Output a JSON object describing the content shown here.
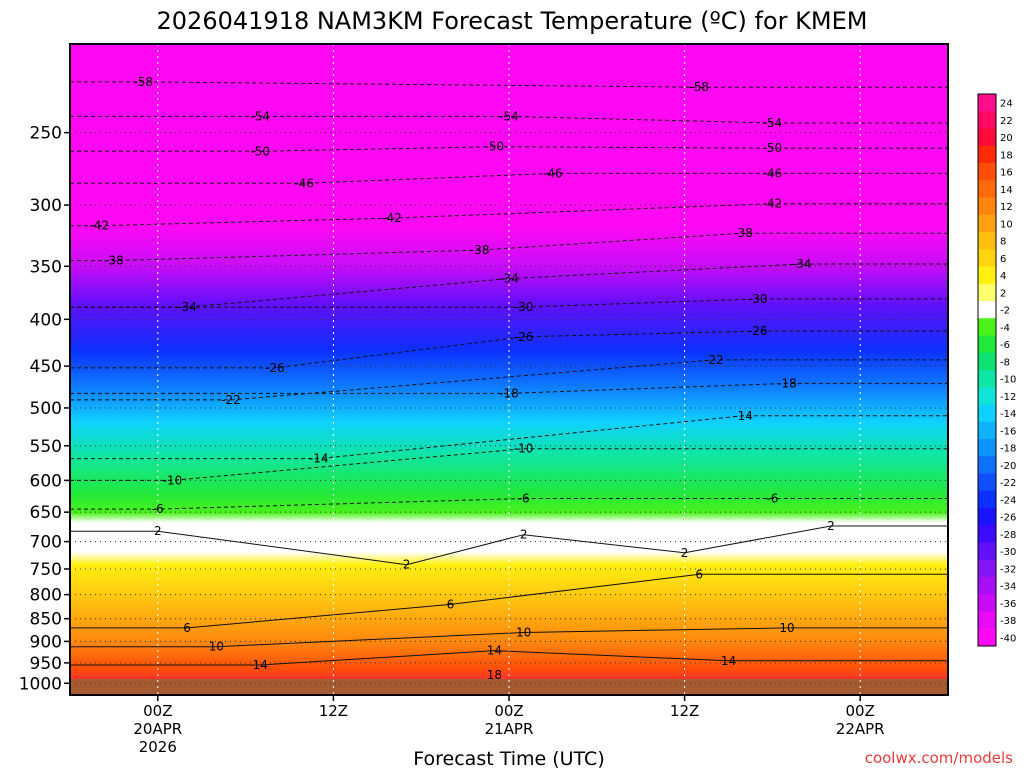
{
  "chart_data": {
    "type": "heatmap",
    "title": "2026041918 NAM3KM Forecast Temperature (ºC) for KMEM",
    "xlabel": "Forecast Time (UTC)",
    "ylabel": "",
    "y_scale": "log-pressure",
    "y_inverted": true,
    "ylim": [
      1030,
      200
    ],
    "y_ticks": [
      250,
      300,
      350,
      400,
      450,
      500,
      550,
      600,
      650,
      700,
      750,
      800,
      850,
      900,
      950,
      1000
    ],
    "x_ticks": [
      {
        "hour": 6,
        "lines": [
          "00Z",
          "20APR",
          "2026"
        ]
      },
      {
        "hour": 18,
        "lines": [
          "12Z"
        ]
      },
      {
        "hour": 30,
        "lines": [
          "00Z",
          "21APR"
        ]
      },
      {
        "hour": 42,
        "lines": [
          "12Z"
        ]
      },
      {
        "hour": 54,
        "lines": [
          "00Z",
          "22APR"
        ]
      }
    ],
    "xlim": [
      0,
      60
    ],
    "colorbar": {
      "labels": [
        "24",
        "22",
        "20",
        "18",
        "16",
        "14",
        "12",
        "10",
        "8",
        "6",
        "4",
        "2",
        "-2",
        "-4",
        "-6",
        "-8",
        "-10",
        "-12",
        "-14",
        "-16",
        "-18",
        "-20",
        "-22",
        "-24",
        "-26",
        "-28",
        "-30",
        "-32",
        "-34",
        "-36",
        "-38",
        "-40"
      ],
      "colors": [
        "#ff0d8c",
        "#ff0a66",
        "#ff0b3b",
        "#ff2a0a",
        "#ff4e0a",
        "#ff6a0d",
        "#ff850e",
        "#ffa10e",
        "#ffbd10",
        "#ffd50f",
        "#fff00f",
        "#fdff6a",
        "#ffffff",
        "#4af21a",
        "#21e83c",
        "#10e070",
        "#0fe6a6",
        "#0fe5d6",
        "#0fd0ff",
        "#0fb2ff",
        "#0f93ff",
        "#0f72ff",
        "#0f4fff",
        "#0c30ff",
        "#1a14ff",
        "#3d0bff",
        "#620ffa",
        "#8415f5",
        "#a80ef7",
        "#c90cf8",
        "#e90bf7",
        "#ff09f5"
      ]
    },
    "contour_labels": [
      {
        "t": 5,
        "p": 220,
        "v": "-58"
      },
      {
        "t": 43,
        "p": 223,
        "v": "-58"
      },
      {
        "t": 13,
        "p": 240,
        "v": "-54"
      },
      {
        "t": 30,
        "p": 240,
        "v": "-54"
      },
      {
        "t": 48,
        "p": 244,
        "v": "-54"
      },
      {
        "t": 13,
        "p": 262,
        "v": "-50"
      },
      {
        "t": 29,
        "p": 259,
        "v": "-50"
      },
      {
        "t": 48,
        "p": 260,
        "v": "-50"
      },
      {
        "t": 16,
        "p": 284,
        "v": "-46"
      },
      {
        "t": 33,
        "p": 277,
        "v": "-46"
      },
      {
        "t": 48,
        "p": 277,
        "v": "-46"
      },
      {
        "t": 2,
        "p": 316,
        "v": "-42"
      },
      {
        "t": 22,
        "p": 310,
        "v": "-42"
      },
      {
        "t": 48,
        "p": 299,
        "v": "-42"
      },
      {
        "t": 3,
        "p": 345,
        "v": "-38"
      },
      {
        "t": 28,
        "p": 336,
        "v": "-38"
      },
      {
        "t": 46,
        "p": 322,
        "v": "-38"
      },
      {
        "t": 8,
        "p": 388,
        "v": "-34"
      },
      {
        "t": 30,
        "p": 361,
        "v": "-34"
      },
      {
        "t": 50,
        "p": 348,
        "v": "-34"
      },
      {
        "t": 31,
        "p": 388,
        "v": "-30"
      },
      {
        "t": 47,
        "p": 380,
        "v": "-30"
      },
      {
        "t": 14,
        "p": 452,
        "v": "-26"
      },
      {
        "t": 31,
        "p": 418,
        "v": "-26"
      },
      {
        "t": 47,
        "p": 412,
        "v": "-26"
      },
      {
        "t": 11,
        "p": 490,
        "v": "-22"
      },
      {
        "t": 44,
        "p": 443,
        "v": "-22"
      },
      {
        "t": 30,
        "p": 482,
        "v": "-18"
      },
      {
        "t": 49,
        "p": 470,
        "v": "-18"
      },
      {
        "t": 17,
        "p": 568,
        "v": "-14"
      },
      {
        "t": 46,
        "p": 510,
        "v": "-14"
      },
      {
        "t": 7,
        "p": 600,
        "v": "-10"
      },
      {
        "t": 31,
        "p": 554,
        "v": "-10"
      },
      {
        "t": 6,
        "p": 645,
        "v": "-6"
      },
      {
        "t": 31,
        "p": 628,
        "v": "-6"
      },
      {
        "t": 48,
        "p": 628,
        "v": "-6"
      },
      {
        "t": 6,
        "p": 682,
        "v": "2"
      },
      {
        "t": 31,
        "p": 688,
        "v": "2"
      },
      {
        "t": 52,
        "p": 673,
        "v": "2"
      },
      {
        "t": 23,
        "p": 742,
        "v": "2"
      },
      {
        "t": 42,
        "p": 720,
        "v": "2"
      },
      {
        "t": 8,
        "p": 870,
        "v": "6"
      },
      {
        "t": 26,
        "p": 820,
        "v": "6"
      },
      {
        "t": 43,
        "p": 760,
        "v": "6"
      },
      {
        "t": 10,
        "p": 912,
        "v": "10"
      },
      {
        "t": 31,
        "p": 880,
        "v": "10"
      },
      {
        "t": 49,
        "p": 870,
        "v": "10"
      },
      {
        "t": 13,
        "p": 955,
        "v": "14"
      },
      {
        "t": 29,
        "p": 921,
        "v": "14"
      },
      {
        "t": 45,
        "p": 945,
        "v": "14"
      },
      {
        "t": 29,
        "p": 980,
        "v": "18"
      }
    ]
  },
  "credit": "coolwx.com/models"
}
